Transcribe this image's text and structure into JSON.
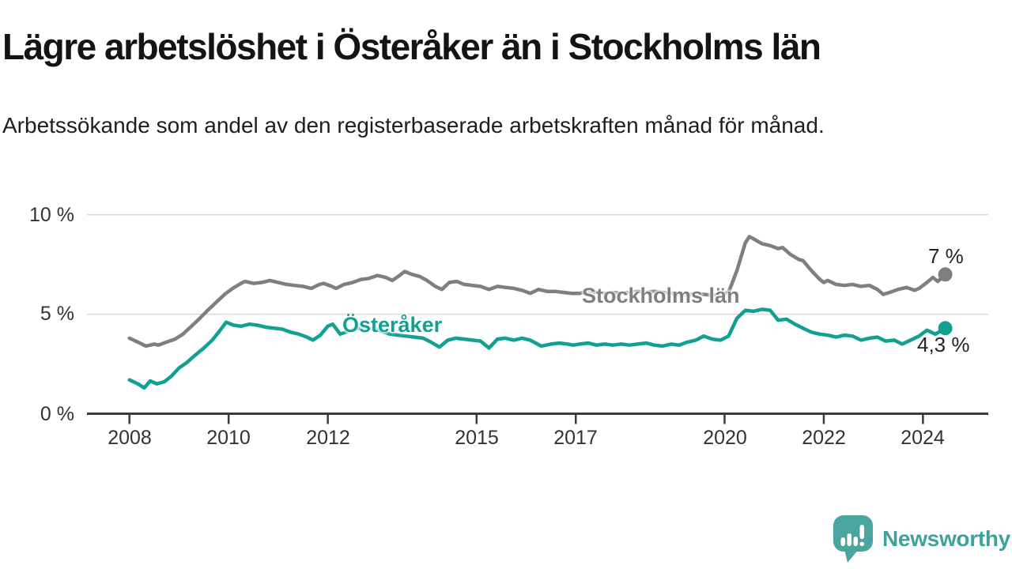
{
  "header": {
    "title": "Lägre arbetslöshet i Österåker än i Stockholms län",
    "subtitle": "Arbetssökande som andel av den registerbaserade arbetskraften månad för månad."
  },
  "footer": {
    "brand": "Newsworthy"
  },
  "colors": {
    "series_gray": "#7f7f7f",
    "series_teal": "#11a091",
    "brand_teal": "#4aa59e",
    "grid": "#d9d9d9",
    "axis": "#3b3b3b"
  },
  "chart_data": {
    "type": "line",
    "title": "Lägre arbetslöshet i Österåker än i Stockholms län",
    "subtitle": "Arbetssökande som andel av den registerbaserade arbetskraften månad för månad.",
    "xlabel": "",
    "ylabel": "",
    "grid": "horizontal",
    "legend_position": "inline-labels",
    "x_axis": {
      "ticks": [
        2008,
        2010,
        2012,
        2015,
        2017,
        2020,
        2022,
        2024
      ],
      "range_years": [
        2008,
        2024.45
      ]
    },
    "y_axis": {
      "tick_values": [
        0,
        5,
        10
      ],
      "tick_labels": [
        "0 %",
        "5 %",
        "10 %"
      ],
      "grid_values": [
        5,
        10
      ],
      "range": [
        0,
        10.5
      ],
      "unit": "%"
    },
    "series": [
      {
        "name": "Stockholms län",
        "color": "#7f7f7f",
        "end_label": "7 %",
        "end_value": 7,
        "points": [
          [
            2008.0,
            3.8
          ],
          [
            2008.17,
            3.6
          ],
          [
            2008.33,
            3.4
          ],
          [
            2008.5,
            3.5
          ],
          [
            2008.58,
            3.45
          ],
          [
            2008.75,
            3.6
          ],
          [
            2008.92,
            3.75
          ],
          [
            2009.08,
            4.0
          ],
          [
            2009.25,
            4.4
          ],
          [
            2009.42,
            4.8
          ],
          [
            2009.58,
            5.2
          ],
          [
            2009.75,
            5.6
          ],
          [
            2009.92,
            6.0
          ],
          [
            2010.08,
            6.3
          ],
          [
            2010.25,
            6.55
          ],
          [
            2010.33,
            6.65
          ],
          [
            2010.5,
            6.55
          ],
          [
            2010.67,
            6.6
          ],
          [
            2010.83,
            6.7
          ],
          [
            2011.0,
            6.6
          ],
          [
            2011.17,
            6.5
          ],
          [
            2011.33,
            6.45
          ],
          [
            2011.5,
            6.4
          ],
          [
            2011.67,
            6.3
          ],
          [
            2011.83,
            6.5
          ],
          [
            2011.92,
            6.55
          ],
          [
            2012.08,
            6.4
          ],
          [
            2012.17,
            6.3
          ],
          [
            2012.33,
            6.5
          ],
          [
            2012.5,
            6.6
          ],
          [
            2012.67,
            6.75
          ],
          [
            2012.83,
            6.8
          ],
          [
            2013.0,
            6.95
          ],
          [
            2013.17,
            6.85
          ],
          [
            2013.3,
            6.7
          ],
          [
            2013.42,
            6.9
          ],
          [
            2013.55,
            7.15
          ],
          [
            2013.7,
            7.0
          ],
          [
            2013.85,
            6.9
          ],
          [
            2014.0,
            6.7
          ],
          [
            2014.17,
            6.4
          ],
          [
            2014.3,
            6.25
          ],
          [
            2014.45,
            6.6
          ],
          [
            2014.6,
            6.65
          ],
          [
            2014.75,
            6.5
          ],
          [
            2014.92,
            6.45
          ],
          [
            2015.08,
            6.4
          ],
          [
            2015.25,
            6.25
          ],
          [
            2015.42,
            6.4
          ],
          [
            2015.58,
            6.35
          ],
          [
            2015.75,
            6.3
          ],
          [
            2015.92,
            6.2
          ],
          [
            2016.08,
            6.05
          ],
          [
            2016.25,
            6.25
          ],
          [
            2016.42,
            6.15
          ],
          [
            2016.58,
            6.15
          ],
          [
            2016.75,
            6.1
          ],
          [
            2016.92,
            6.05
          ],
          [
            2017.08,
            6.05
          ],
          [
            2017.25,
            6.15
          ],
          [
            2017.42,
            6.1
          ],
          [
            2017.58,
            6.05
          ],
          [
            2017.75,
            6.1
          ],
          [
            2017.92,
            6.05
          ],
          [
            2018.08,
            6.1
          ],
          [
            2018.25,
            6.15
          ],
          [
            2018.42,
            6.1
          ],
          [
            2018.58,
            6.15
          ],
          [
            2018.75,
            6.1
          ],
          [
            2018.92,
            6.05
          ],
          [
            2019.08,
            6.0
          ],
          [
            2019.25,
            5.95
          ],
          [
            2019.42,
            6.05
          ],
          [
            2019.58,
            6.0
          ],
          [
            2019.75,
            5.95
          ],
          [
            2019.92,
            6.0
          ],
          [
            2020.08,
            6.1
          ],
          [
            2020.25,
            7.2
          ],
          [
            2020.42,
            8.6
          ],
          [
            2020.5,
            8.9
          ],
          [
            2020.58,
            8.8
          ],
          [
            2020.75,
            8.55
          ],
          [
            2020.92,
            8.45
          ],
          [
            2021.08,
            8.3
          ],
          [
            2021.17,
            8.35
          ],
          [
            2021.33,
            8.0
          ],
          [
            2021.5,
            7.75
          ],
          [
            2021.58,
            7.7
          ],
          [
            2021.75,
            7.2
          ],
          [
            2021.92,
            6.75
          ],
          [
            2022.0,
            6.6
          ],
          [
            2022.08,
            6.7
          ],
          [
            2022.25,
            6.5
          ],
          [
            2022.42,
            6.45
          ],
          [
            2022.58,
            6.5
          ],
          [
            2022.75,
            6.4
          ],
          [
            2022.92,
            6.45
          ],
          [
            2023.08,
            6.25
          ],
          [
            2023.2,
            6.0
          ],
          [
            2023.33,
            6.1
          ],
          [
            2023.5,
            6.25
          ],
          [
            2023.67,
            6.35
          ],
          [
            2023.83,
            6.2
          ],
          [
            2023.92,
            6.3
          ],
          [
            2024.08,
            6.6
          ],
          [
            2024.2,
            6.85
          ],
          [
            2024.3,
            6.65
          ],
          [
            2024.45,
            7.0
          ]
        ]
      },
      {
        "name": "Österåker",
        "color": "#11a091",
        "end_label": "4,3 %",
        "end_value": 4.3,
        "points": [
          [
            2008.0,
            1.7
          ],
          [
            2008.17,
            1.5
          ],
          [
            2008.3,
            1.3
          ],
          [
            2008.42,
            1.65
          ],
          [
            2008.55,
            1.5
          ],
          [
            2008.7,
            1.6
          ],
          [
            2008.85,
            1.9
          ],
          [
            2009.0,
            2.3
          ],
          [
            2009.17,
            2.6
          ],
          [
            2009.33,
            2.95
          ],
          [
            2009.5,
            3.3
          ],
          [
            2009.67,
            3.7
          ],
          [
            2009.83,
            4.2
          ],
          [
            2009.95,
            4.6
          ],
          [
            2010.1,
            4.45
          ],
          [
            2010.25,
            4.4
          ],
          [
            2010.42,
            4.5
          ],
          [
            2010.58,
            4.45
          ],
          [
            2010.75,
            4.35
          ],
          [
            2010.92,
            4.3
          ],
          [
            2011.08,
            4.25
          ],
          [
            2011.25,
            4.1
          ],
          [
            2011.42,
            4.0
          ],
          [
            2011.58,
            3.85
          ],
          [
            2011.7,
            3.7
          ],
          [
            2011.85,
            3.95
          ],
          [
            2012.0,
            4.4
          ],
          [
            2012.1,
            4.5
          ],
          [
            2012.25,
            4.0
          ],
          [
            2012.42,
            4.15
          ],
          [
            2012.58,
            4.3
          ],
          [
            2012.75,
            4.25
          ],
          [
            2012.92,
            4.3
          ],
          [
            2013.08,
            4.15
          ],
          [
            2013.25,
            4.0
          ],
          [
            2013.42,
            3.95
          ],
          [
            2013.58,
            3.9
          ],
          [
            2013.75,
            3.85
          ],
          [
            2013.92,
            3.8
          ],
          [
            2014.08,
            3.6
          ],
          [
            2014.25,
            3.35
          ],
          [
            2014.42,
            3.7
          ],
          [
            2014.58,
            3.8
          ],
          [
            2014.75,
            3.75
          ],
          [
            2014.92,
            3.7
          ],
          [
            2015.08,
            3.65
          ],
          [
            2015.25,
            3.3
          ],
          [
            2015.42,
            3.75
          ],
          [
            2015.58,
            3.8
          ],
          [
            2015.75,
            3.7
          ],
          [
            2015.92,
            3.8
          ],
          [
            2016.08,
            3.7
          ],
          [
            2016.3,
            3.4
          ],
          [
            2016.5,
            3.5
          ],
          [
            2016.67,
            3.55
          ],
          [
            2016.83,
            3.5
          ],
          [
            2016.95,
            3.45
          ],
          [
            2017.08,
            3.5
          ],
          [
            2017.25,
            3.55
          ],
          [
            2017.42,
            3.45
          ],
          [
            2017.58,
            3.5
          ],
          [
            2017.75,
            3.45
          ],
          [
            2017.92,
            3.5
          ],
          [
            2018.08,
            3.45
          ],
          [
            2018.25,
            3.5
          ],
          [
            2018.42,
            3.55
          ],
          [
            2018.58,
            3.45
          ],
          [
            2018.75,
            3.4
          ],
          [
            2018.92,
            3.5
          ],
          [
            2019.08,
            3.45
          ],
          [
            2019.25,
            3.6
          ],
          [
            2019.42,
            3.7
          ],
          [
            2019.58,
            3.9
          ],
          [
            2019.75,
            3.75
          ],
          [
            2019.92,
            3.7
          ],
          [
            2020.08,
            3.9
          ],
          [
            2020.25,
            4.8
          ],
          [
            2020.42,
            5.2
          ],
          [
            2020.58,
            5.15
          ],
          [
            2020.75,
            5.25
          ],
          [
            2020.92,
            5.2
          ],
          [
            2021.08,
            4.7
          ],
          [
            2021.25,
            4.75
          ],
          [
            2021.42,
            4.5
          ],
          [
            2021.58,
            4.3
          ],
          [
            2021.75,
            4.1
          ],
          [
            2021.92,
            4.0
          ],
          [
            2022.08,
            3.95
          ],
          [
            2022.25,
            3.85
          ],
          [
            2022.42,
            3.95
          ],
          [
            2022.58,
            3.9
          ],
          [
            2022.75,
            3.7
          ],
          [
            2022.92,
            3.8
          ],
          [
            2023.08,
            3.85
          ],
          [
            2023.25,
            3.65
          ],
          [
            2023.42,
            3.7
          ],
          [
            2023.58,
            3.5
          ],
          [
            2023.75,
            3.7
          ],
          [
            2023.92,
            3.9
          ],
          [
            2024.08,
            4.2
          ],
          [
            2024.25,
            4.0
          ],
          [
            2024.45,
            4.3
          ]
        ]
      }
    ]
  }
}
